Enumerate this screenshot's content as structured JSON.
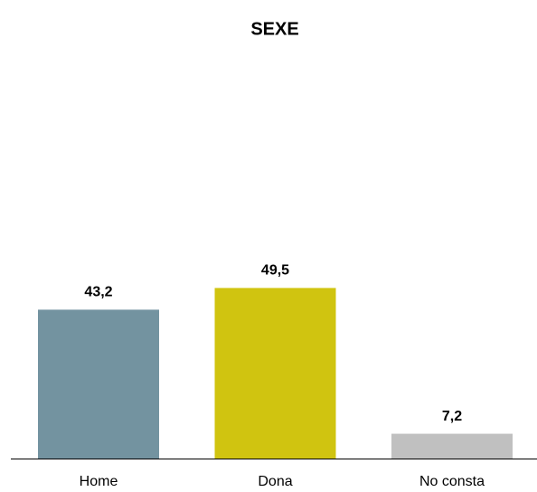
{
  "chart_data": {
    "type": "bar",
    "title": "SEXE",
    "categories": [
      "Home",
      "Dona",
      "No consta"
    ],
    "values": [
      43.2,
      49.5,
      7.2
    ],
    "value_labels": [
      "43,2",
      "49,5",
      "7,2"
    ],
    "colors": [
      "#7393a0",
      "#d0c410",
      "#c0c0c0"
    ]
  }
}
